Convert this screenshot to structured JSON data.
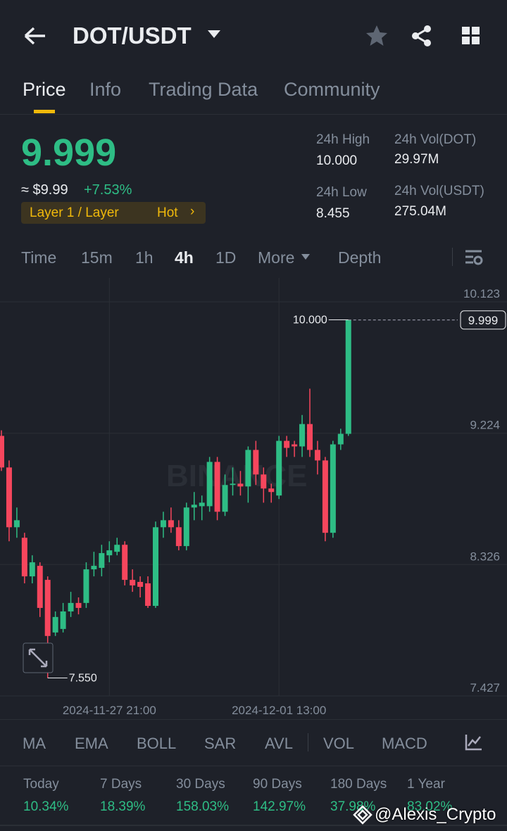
{
  "header": {
    "title": "DOT/USDT"
  },
  "tabs": [
    "Price",
    "Info",
    "Trading Data",
    "Community"
  ],
  "price": {
    "last": "9.999",
    "fiat": "≈ $9.99",
    "change": "+7.53%",
    "tag": "Layer 1 / Layer",
    "hot": "Hot"
  },
  "stats": [
    {
      "label": "24h High",
      "value": "10.000"
    },
    {
      "label": "24h Vol(DOT)",
      "value": "29.97M"
    },
    {
      "label": "24h Low",
      "value": "8.455"
    },
    {
      "label": "24h Vol(USDT)",
      "value": "275.04M"
    }
  ],
  "intervals": [
    "Time",
    "15m",
    "1h",
    "4h",
    "1D",
    "More",
    "Depth"
  ],
  "chart_data": {
    "type": "candlestick",
    "watermark": "BINANCE",
    "categories": [
      null,
      null,
      null,
      null,
      null,
      null,
      null,
      null,
      null,
      null,
      null,
      null,
      null,
      null,
      "2024-11-27 21:00",
      null,
      null,
      null,
      null,
      null,
      null,
      null,
      null,
      null,
      null,
      null,
      null,
      null,
      null,
      null,
      null,
      null,
      null,
      null,
      null,
      null,
      "2024-12-01 13:00",
      null,
      null,
      null,
      null,
      null,
      null,
      null,
      null,
      null
    ],
    "open": [
      9.206,
      8.99,
      8.581,
      8.509,
      8.245,
      8.317,
      8.221,
      7.861,
      7.885,
      8.005,
      8.063,
      8.063,
      8.293,
      8.303,
      8.389,
      8.413,
      8.461,
      8.221,
      8.207,
      8.197,
      8.043,
      8.581,
      8.629,
      8.581,
      8.452,
      8.716,
      8.725,
      8.725,
      9.028,
      8.687,
      8.87,
      8.879,
      8.86,
      9.11,
      8.942,
      8.846,
      8.798,
      9.172,
      9.148,
      9.134,
      9.287,
      9.11,
      9.038,
      8.543,
      9.148,
      9.22
    ],
    "high": [
      9.244,
      9.038,
      8.716,
      8.543,
      8.389,
      8.341,
      8.245,
      8.005,
      8.063,
      8.139,
      8.101,
      8.341,
      8.413,
      8.461,
      8.485,
      8.509,
      8.485,
      8.293,
      8.245,
      8.245,
      8.62,
      8.687,
      8.716,
      8.629,
      8.749,
      8.822,
      8.798,
      9.062,
      9.062,
      8.942,
      8.99,
      8.966,
      9.134,
      9.172,
      8.99,
      8.879,
      9.206,
      9.206,
      9.172,
      9.349,
      9.529,
      9.172,
      9.062,
      9.172,
      9.255,
      10.0
    ],
    "low": [
      8.966,
      8.485,
      8.509,
      8.197,
      8.197,
      7.967,
      7.55,
      7.837,
      7.861,
      7.967,
      7.985,
      8.029,
      8.245,
      8.245,
      8.341,
      8.389,
      8.183,
      8.139,
      8.101,
      8.029,
      8.029,
      8.509,
      8.543,
      8.423,
      8.423,
      8.629,
      8.629,
      8.687,
      8.629,
      8.658,
      8.798,
      8.798,
      8.749,
      8.87,
      8.749,
      8.749,
      8.774,
      9.062,
      9.062,
      9.062,
      9.062,
      8.942,
      8.485,
      8.509,
      9.11,
      9.206
    ],
    "close": [
      8.99,
      8.581,
      8.629,
      8.245,
      8.341,
      8.029,
      7.837,
      7.967,
      8.005,
      8.063,
      8.029,
      8.293,
      8.317,
      8.404,
      8.423,
      8.461,
      8.221,
      8.183,
      8.173,
      8.043,
      8.581,
      8.629,
      8.581,
      8.452,
      8.716,
      8.735,
      8.749,
      9.028,
      8.687,
      8.87,
      8.879,
      8.86,
      9.11,
      8.942,
      8.846,
      8.822,
      9.172,
      9.124,
      9.134,
      9.287,
      9.11,
      9.038,
      8.543,
      9.148,
      9.22,
      9.999
    ],
    "up_color": "#2ebd85",
    "down_color": "#f6465d",
    "ylim": [
      7.427,
      10.123
    ],
    "yticks": [
      7.427,
      8.326,
      9.224,
      10.123
    ],
    "max_label": {
      "value": 10,
      "label": "10.000"
    },
    "min_label": {
      "value": 7.55,
      "label": "7.550"
    },
    "last_price": 9.999
  },
  "indicators": [
    "MA",
    "EMA",
    "BOLL",
    "SAR",
    "AVL",
    "VOL",
    "MACD"
  ],
  "performance": [
    {
      "label": "Today",
      "value": "10.34%"
    },
    {
      "label": "7 Days",
      "value": "18.39%"
    },
    {
      "label": "30 Days",
      "value": "158.03%"
    },
    {
      "label": "90 Days",
      "value": "142.97%"
    },
    {
      "label": "180 Days",
      "value": "37.98%"
    },
    {
      "label": "1 Year",
      "value": "83.02%"
    }
  ],
  "watermark": "@Alexis_Crypto"
}
